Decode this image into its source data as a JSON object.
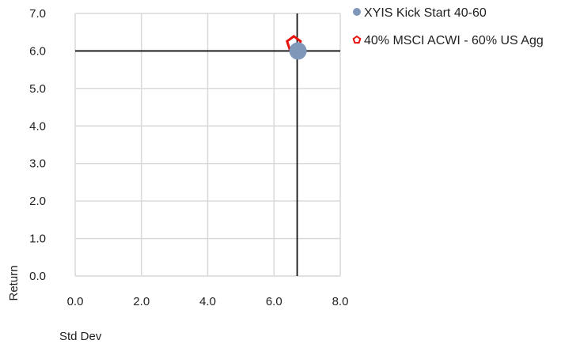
{
  "chart_data": {
    "type": "scatter",
    "title": "",
    "xlabel": "Std Dev",
    "ylabel": "Return",
    "xlim": [
      0,
      8
    ],
    "ylim": [
      0,
      7
    ],
    "x_ticks": [
      "0.0",
      "2.0",
      "4.0",
      "6.0",
      "8.0"
    ],
    "y_ticks": [
      "0.0",
      "1.0",
      "2.0",
      "3.0",
      "4.0",
      "5.0",
      "6.0",
      "7.0"
    ],
    "grid": true,
    "legend_position": "top-right",
    "crosshair": {
      "x": 6.7,
      "y": 6.0
    },
    "series": [
      {
        "name": "XYIS Kick Start 40-60",
        "marker": "circle",
        "color": "#7f97b8",
        "x": 6.7,
        "y": 6.0
      },
      {
        "name": "40% MSCI ACWI - 60% US Agg",
        "marker": "pentagon",
        "color": "#e8120c",
        "x": 6.6,
        "y": 6.2
      }
    ]
  }
}
